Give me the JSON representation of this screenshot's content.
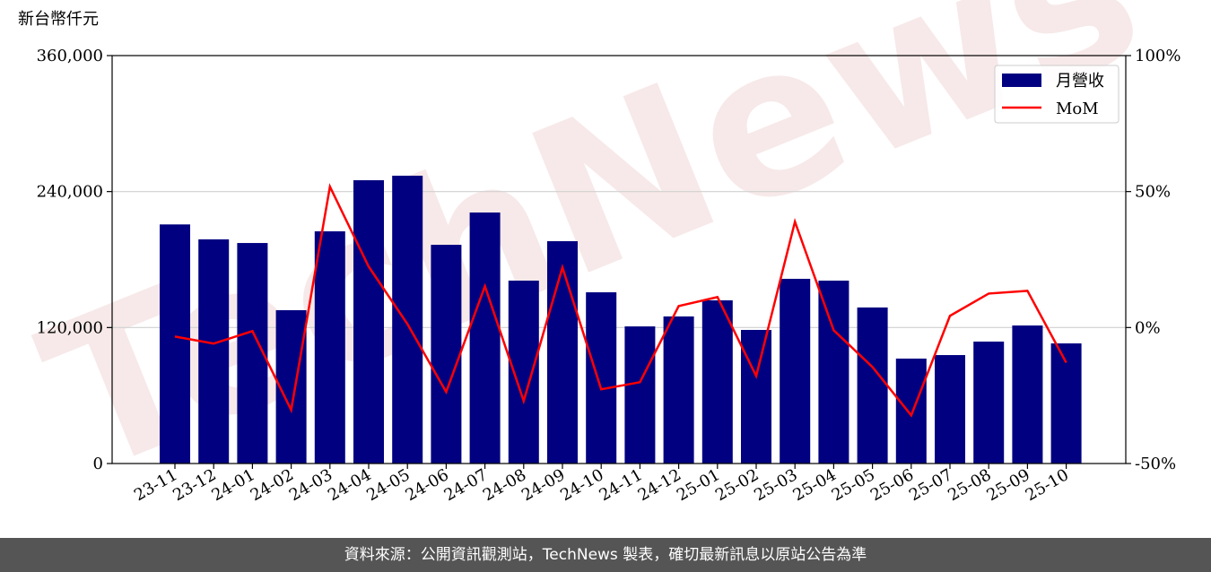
{
  "chart_data": {
    "type": "bar",
    "ylabel": "新台幣仟元",
    "watermark": "TechNews",
    "categories": [
      "23-11",
      "23-12",
      "24-01",
      "24-02",
      "24-03",
      "24-04",
      "24-05",
      "24-06",
      "24-07",
      "24-08",
      "24-09",
      "24-10",
      "24-11",
      "24-12",
      "25-01",
      "25-02",
      "25-03",
      "25-04",
      "25-05",
      "25-06",
      "25-07",
      "25-08",
      "25-09",
      "25-10"
    ],
    "series": [
      {
        "name": "月營收",
        "type": "bar",
        "color": "#000080",
        "values": [
          211000,
          197800,
          194600,
          135300,
          204900,
          250000,
          254000,
          193000,
          221500,
          161400,
          196200,
          151100,
          121000,
          129800,
          144000,
          117900,
          163000,
          161400,
          137700,
          92600,
          95700,
          107600,
          121800,
          106000
        ]
      },
      {
        "name": "MoM",
        "type": "line",
        "color": "#ff0000",
        "axis": "y2",
        "values": [
          -3.3,
          -5.9,
          -1.3,
          -30.3,
          51.8,
          22.4,
          1.3,
          -23.7,
          15.2,
          -27.0,
          22.1,
          -22.7,
          -20.1,
          7.9,
          11.2,
          -17.8,
          38.9,
          -1.0,
          -14.5,
          -32.3,
          4.3,
          12.5,
          13.5,
          -12.9
        ]
      }
    ],
    "ylim": [
      0,
      360000
    ],
    "yticks": [
      0,
      {
        "value": 120000,
        "label": "120,000"
      },
      {
        "value": 240000,
        "label": "240,000"
      },
      {
        "value": 360000,
        "label": "360,000"
      }
    ],
    "y2lim": [
      -50,
      100
    ],
    "y2ticks": [
      {
        "value": -50,
        "label": "-50%"
      },
      {
        "value": 0,
        "label": "0%"
      },
      {
        "value": 50,
        "label": "50%"
      },
      {
        "value": 100,
        "label": "100%"
      }
    ],
    "grid": true,
    "legend": "upper right"
  },
  "footer": {
    "text": "資料來源：公開資訊觀測站，TechNews 製表，確切最新訊息以原站公告為準"
  }
}
